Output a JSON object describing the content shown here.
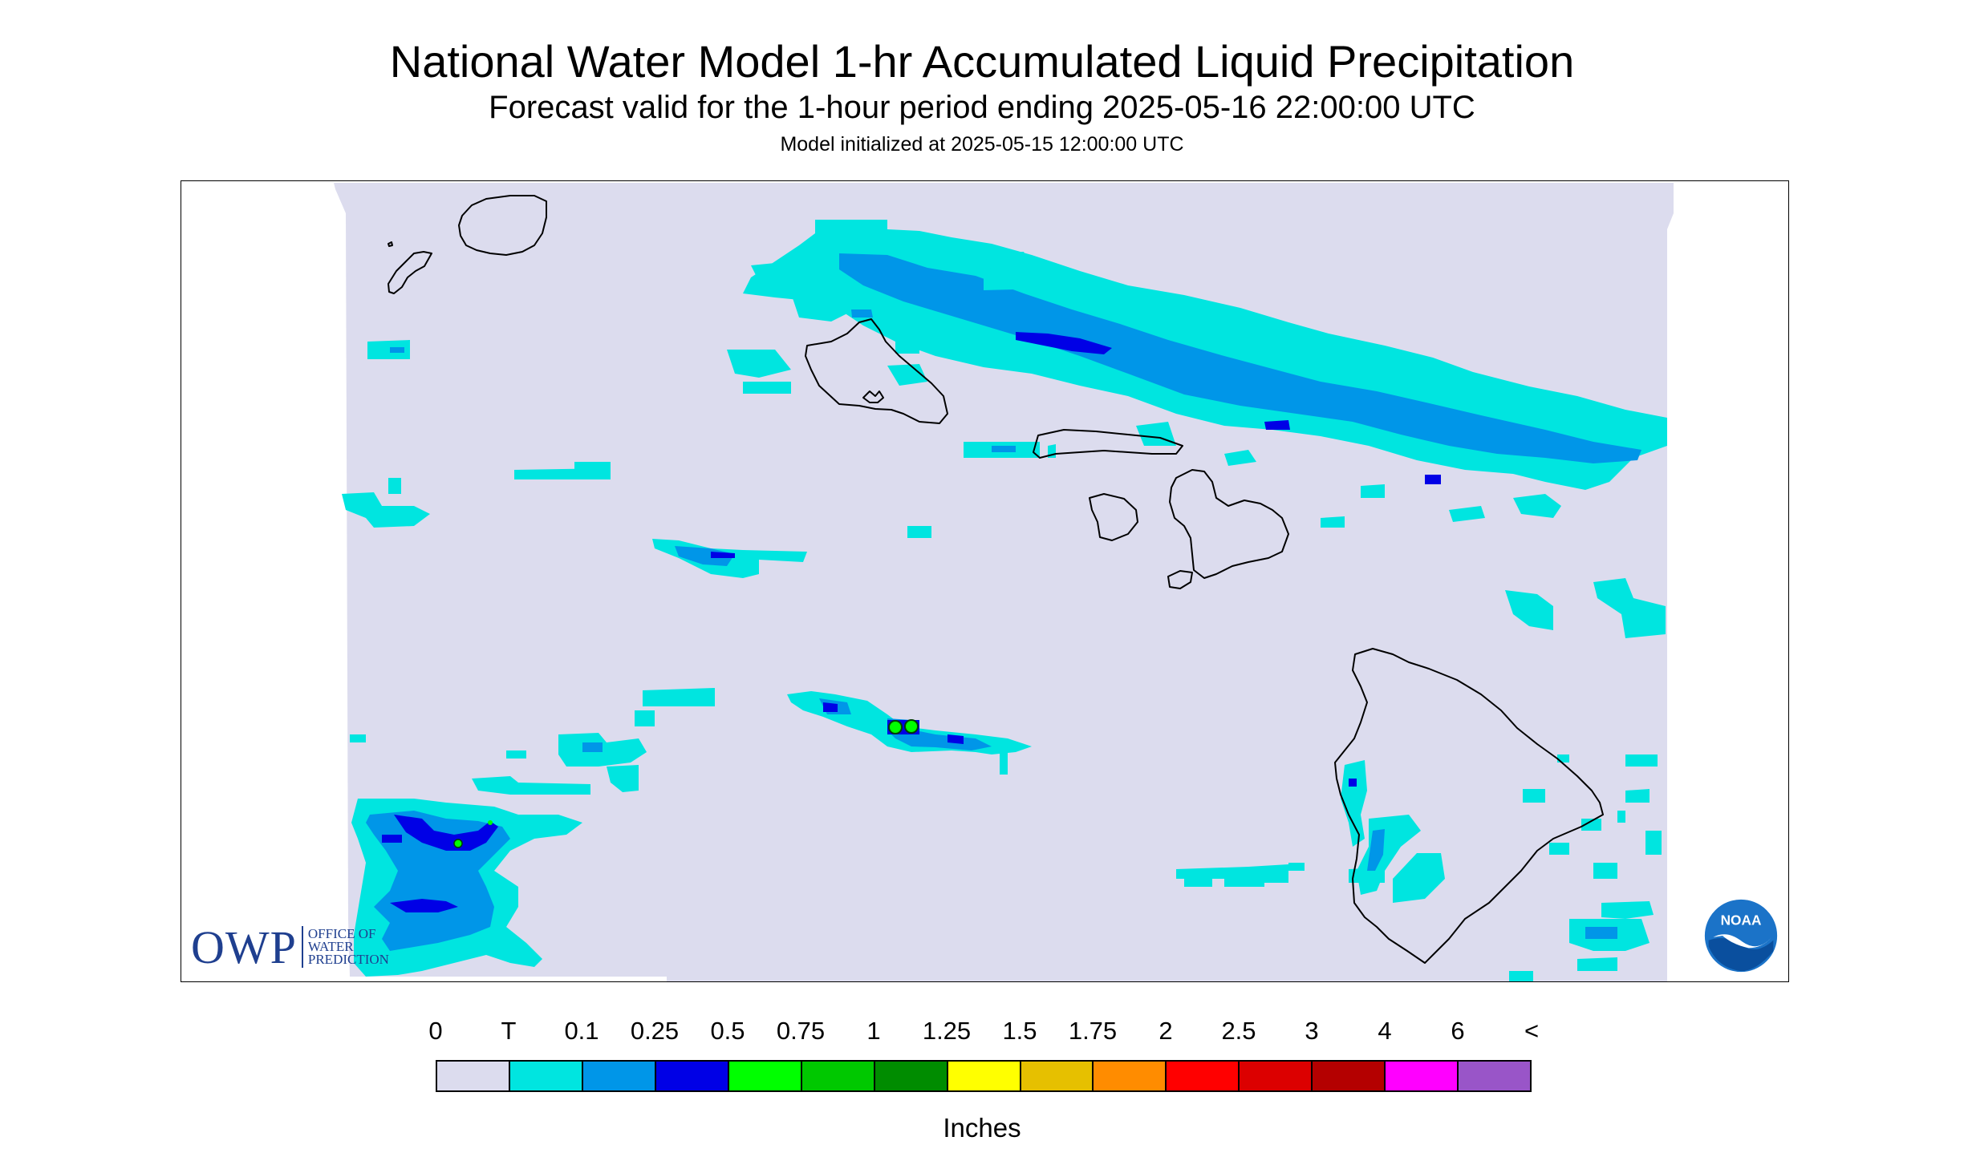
{
  "title": "National Water Model 1-hr Accumulated Liquid Precipitation",
  "subtitle": "Forecast valid for the 1-hour period ending 2025-05-16 22:00:00 UTC",
  "init_line": "Model initialized at 2025-05-15 12:00:00 UTC",
  "colors": {
    "background_none": "#dcdcee",
    "trace": "#00e5e0",
    "light_blue": "#0096e8",
    "blue": "#0000e6",
    "outline": "#000000",
    "owp_blue": "#1f3f8f",
    "noaa_blue": "#1b73c8"
  },
  "map": {
    "region": "Hawaiian Islands",
    "coastlines": [
      "Niihau",
      "Kauai",
      "Oahu",
      "Molokai",
      "Lanai",
      "Maui",
      "Kahoolawe",
      "Hawaii"
    ]
  },
  "logos": {
    "owp": {
      "letters": "OWP",
      "line1": "OFFICE OF",
      "line2": "WATER",
      "line3": "PREDICTION",
      "icon": "owp-logo"
    },
    "noaa": {
      "text": "NOAA",
      "icon": "noaa-logo"
    }
  },
  "legend": {
    "ticks": [
      "0",
      "T",
      "0.1",
      "0.25",
      "0.5",
      "0.75",
      "1",
      "1.25",
      "1.5",
      "1.75",
      "2",
      "2.5",
      "3",
      "4",
      "6",
      "<"
    ],
    "colors": [
      "#dcdcee",
      "#00e5e0",
      "#0096e8",
      "#0000e6",
      "#00ff00",
      "#00c800",
      "#008c00",
      "#ffff00",
      "#e6c000",
      "#ff8c00",
      "#ff0000",
      "#dc0000",
      "#b40000",
      "#ff00ff",
      "#9955c8"
    ],
    "units": "Inches"
  }
}
